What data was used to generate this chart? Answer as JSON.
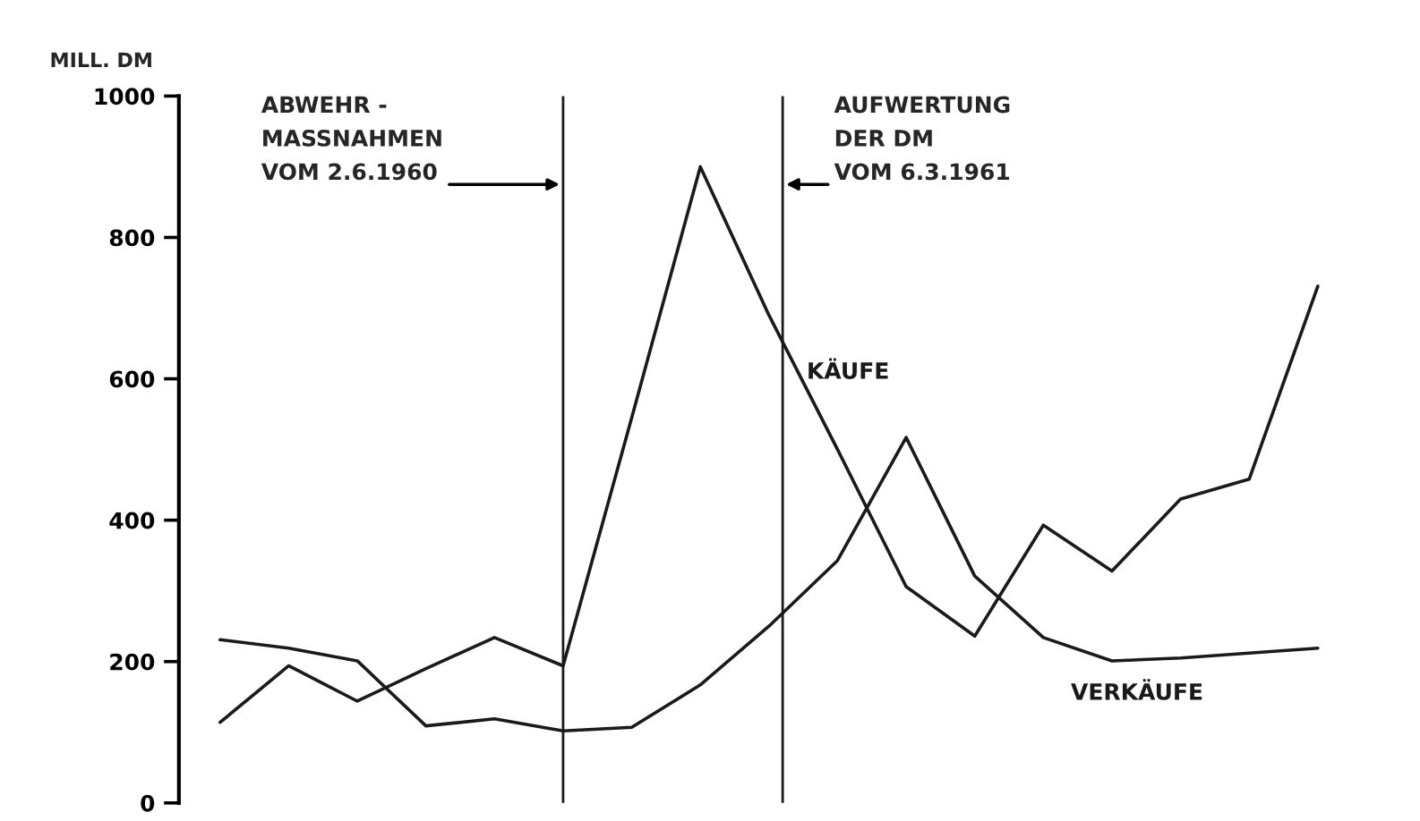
{
  "chart_data": {
    "type": "line",
    "ylabel": "MILL. DM",
    "categories": [
      null,
      null,
      null,
      null,
      null,
      null,
      null,
      null,
      null,
      null,
      null,
      null,
      null,
      null,
      null,
      null,
      null
    ],
    "series": [
      {
        "name": "KÄUFE",
        "color": "#1a1a1a",
        "values": [
          114,
          194,
          144,
          190,
          234,
          194,
          545,
          900,
          690,
          500,
          306,
          236,
          393,
          328,
          430,
          458,
          731
        ]
      },
      {
        "name": "VERKÄUFE",
        "color": "#1a1a1a",
        "values": [
          231,
          219,
          201,
          109,
          119,
          102,
          107,
          167,
          250,
          343,
          517,
          321,
          234,
          201,
          205,
          212,
          219
        ]
      }
    ],
    "ylim": [
      0,
      1000
    ],
    "yticks": [
      0,
      200,
      400,
      600,
      800,
      1000
    ],
    "annotations": [
      "ABWEHR -\nMASSNAHMEN\nVOM 2.6.1960",
      "AUFWERTUNG\nDER DM\nVOM 6.3.1961"
    ],
    "grid": false,
    "legend": false,
    "marker": "none",
    "line_style": "solid"
  }
}
